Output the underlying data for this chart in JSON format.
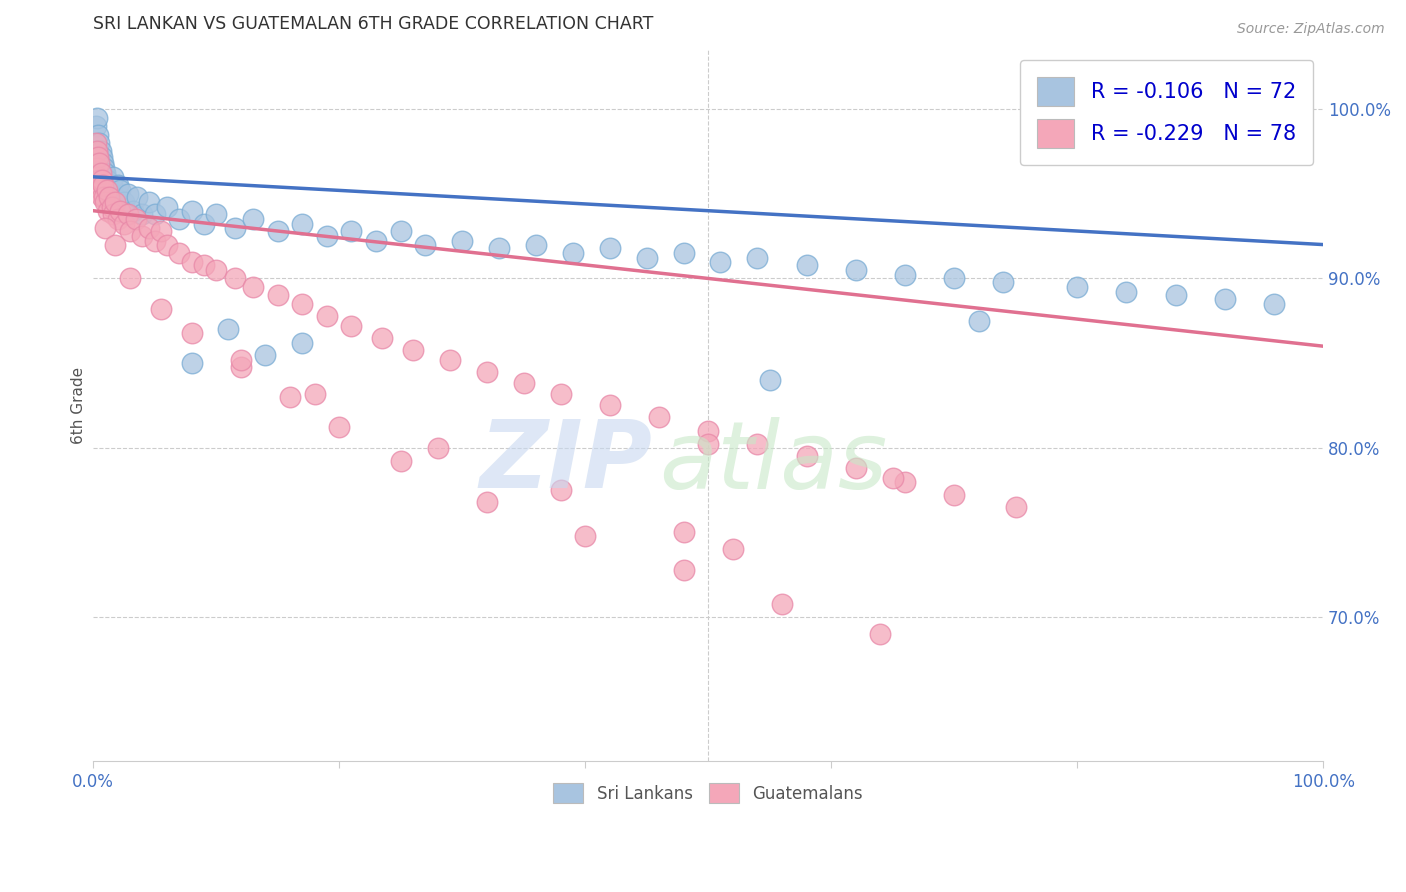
{
  "title": "SRI LANKAN VS GUATEMALAN 6TH GRADE CORRELATION CHART",
  "source": "Source: ZipAtlas.com",
  "ylabel": "6th Grade",
  "xlim": [
    0.0,
    1.0
  ],
  "ylim": [
    0.615,
    1.035
  ],
  "sri_lankan_color": "#a8c4e0",
  "guatemalan_color": "#f4a7b9",
  "sri_lankan_line_color": "#4472c4",
  "guatemalan_line_color": "#e07090",
  "sri_lankan_R": -0.106,
  "sri_lankan_N": 72,
  "guatemalan_R": -0.229,
  "guatemalan_N": 78,
  "legend_label_sri": "Sri Lankans",
  "legend_label_gua": "Guatemalans",
  "sri_lankan_x": [
    0.002,
    0.003,
    0.003,
    0.004,
    0.004,
    0.005,
    0.005,
    0.006,
    0.006,
    0.007,
    0.007,
    0.008,
    0.008,
    0.009,
    0.009,
    0.01,
    0.01,
    0.011,
    0.012,
    0.013,
    0.014,
    0.015,
    0.016,
    0.018,
    0.02,
    0.022,
    0.025,
    0.028,
    0.032,
    0.036,
    0.04,
    0.045,
    0.05,
    0.06,
    0.07,
    0.08,
    0.09,
    0.1,
    0.115,
    0.13,
    0.15,
    0.17,
    0.19,
    0.21,
    0.23,
    0.25,
    0.27,
    0.3,
    0.33,
    0.36,
    0.39,
    0.42,
    0.45,
    0.48,
    0.51,
    0.54,
    0.58,
    0.62,
    0.66,
    0.7,
    0.74,
    0.8,
    0.84,
    0.88,
    0.92,
    0.96,
    0.08,
    0.11,
    0.14,
    0.17,
    0.55,
    0.72
  ],
  "sri_lankan_y": [
    0.99,
    0.995,
    0.975,
    0.985,
    0.97,
    0.968,
    0.98,
    0.965,
    0.975,
    0.96,
    0.972,
    0.958,
    0.968,
    0.955,
    0.965,
    0.952,
    0.962,
    0.958,
    0.955,
    0.952,
    0.95,
    0.955,
    0.96,
    0.948,
    0.955,
    0.952,
    0.945,
    0.95,
    0.94,
    0.948,
    0.938,
    0.945,
    0.938,
    0.942,
    0.935,
    0.94,
    0.932,
    0.938,
    0.93,
    0.935,
    0.928,
    0.932,
    0.925,
    0.928,
    0.922,
    0.928,
    0.92,
    0.922,
    0.918,
    0.92,
    0.915,
    0.918,
    0.912,
    0.915,
    0.91,
    0.912,
    0.908,
    0.905,
    0.902,
    0.9,
    0.898,
    0.895,
    0.892,
    0.89,
    0.888,
    0.885,
    0.85,
    0.87,
    0.855,
    0.862,
    0.84,
    0.875
  ],
  "sri_lankan_line_y0": 0.96,
  "sri_lankan_line_y1": 0.92,
  "guatemalan_x": [
    0.002,
    0.003,
    0.003,
    0.004,
    0.004,
    0.005,
    0.005,
    0.006,
    0.006,
    0.007,
    0.007,
    0.008,
    0.009,
    0.01,
    0.011,
    0.012,
    0.013,
    0.015,
    0.016,
    0.018,
    0.02,
    0.022,
    0.025,
    0.028,
    0.03,
    0.035,
    0.04,
    0.045,
    0.05,
    0.055,
    0.06,
    0.07,
    0.08,
    0.09,
    0.1,
    0.115,
    0.13,
    0.15,
    0.17,
    0.19,
    0.21,
    0.235,
    0.26,
    0.29,
    0.32,
    0.35,
    0.38,
    0.42,
    0.46,
    0.5,
    0.54,
    0.58,
    0.62,
    0.66,
    0.7,
    0.75,
    0.01,
    0.018,
    0.03,
    0.055,
    0.08,
    0.12,
    0.16,
    0.2,
    0.25,
    0.32,
    0.4,
    0.48,
    0.56,
    0.64,
    0.5,
    0.65,
    0.12,
    0.18,
    0.28,
    0.38,
    0.48,
    0.52
  ],
  "guatemalan_y": [
    0.98,
    0.975,
    0.965,
    0.972,
    0.96,
    0.968,
    0.958,
    0.962,
    0.952,
    0.958,
    0.948,
    0.955,
    0.948,
    0.945,
    0.952,
    0.94,
    0.948,
    0.942,
    0.938,
    0.945,
    0.935,
    0.94,
    0.932,
    0.938,
    0.928,
    0.935,
    0.925,
    0.93,
    0.922,
    0.928,
    0.92,
    0.915,
    0.91,
    0.908,
    0.905,
    0.9,
    0.895,
    0.89,
    0.885,
    0.878,
    0.872,
    0.865,
    0.858,
    0.852,
    0.845,
    0.838,
    0.832,
    0.825,
    0.818,
    0.81,
    0.802,
    0.795,
    0.788,
    0.78,
    0.772,
    0.765,
    0.93,
    0.92,
    0.9,
    0.882,
    0.868,
    0.848,
    0.83,
    0.812,
    0.792,
    0.768,
    0.748,
    0.728,
    0.708,
    0.69,
    0.802,
    0.782,
    0.852,
    0.832,
    0.8,
    0.775,
    0.75,
    0.74
  ],
  "guatemalan_line_y0": 0.94,
  "guatemalan_line_y1": 0.86
}
